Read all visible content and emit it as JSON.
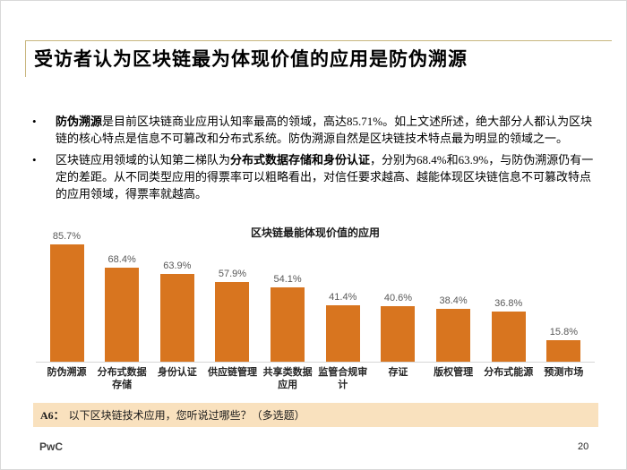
{
  "slide": {
    "title": "受访者认为区块链最为体现价值的应用是防伪溯源",
    "logo_text": "PwC",
    "page_number": "20"
  },
  "bullet_marker": "•",
  "bullets": [
    {
      "pre": "",
      "bold": "防伪溯源",
      "post": "是目前区块链商业应用认知率最高的领域，高达85.71%。如上文述所述，绝大部分人都认为区块链的核心特点是信息不可篡改和分布式系统。防伪溯源自然是区块链技术特点最为明显的领域之一。"
    },
    {
      "pre": "区块链应用领域的认知第二梯队为",
      "bold": "分布式数据存储和身份认证",
      "post": "，分别为68.4%和63.9%，与防伪溯源仍有一定的差距。从不同类型应用的得票率可以粗略看出，对信任要求越高、越能体现区块链信息不可篡改特点的应用领域，得票率就越高。"
    }
  ],
  "chart_data": {
    "type": "bar",
    "title": "区块链最能体现价值的应用",
    "categories": [
      "防伪溯源",
      "分布式数据存储",
      "身份认证",
      "供应链管理",
      "共享类数据应用",
      "监管合规审计",
      "存证",
      "版权管理",
      "分布式能源",
      "预测市场"
    ],
    "values": [
      85.7,
      68.4,
      63.9,
      57.9,
      54.1,
      41.4,
      40.6,
      38.4,
      36.8,
      15.8
    ],
    "value_labels": [
      "85.7%",
      "68.4%",
      "63.9%",
      "57.9%",
      "54.1%",
      "41.4%",
      "40.6%",
      "38.4%",
      "36.8%",
      "15.8%"
    ],
    "xlabel": "",
    "ylabel": "",
    "ylim": [
      0,
      100
    ],
    "grid": false,
    "legend": "none",
    "bar_color": "#D8751F",
    "value_label_color": "#595959"
  },
  "footnote": {
    "prefix": "A6：",
    "text": "以下区块链技术应用，您听说过哪些？（多选题）"
  },
  "colors": {
    "accent_orange": "#D8751F",
    "footnote_background": "#F9E1BE",
    "title_rule_tan": "#C8B67E",
    "axis_gray": "#D6D6D6"
  }
}
